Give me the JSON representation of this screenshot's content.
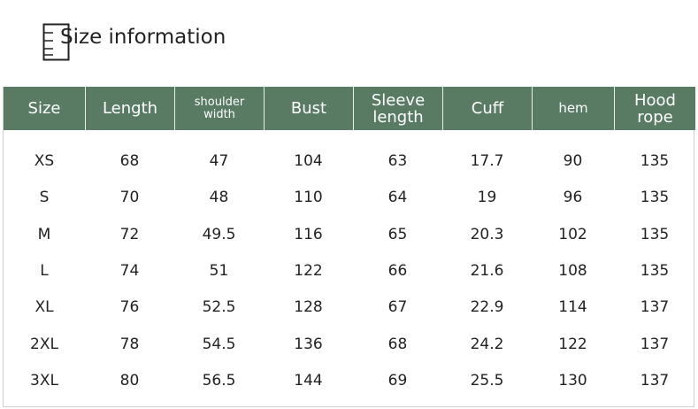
{
  "header": {
    "title": "Size information"
  },
  "table": {
    "headers": [
      [
        "Size"
      ],
      [
        "Length"
      ],
      [
        "shoulder",
        "width"
      ],
      [
        "Bust"
      ],
      [
        "Sleeve",
        "length"
      ],
      [
        "Cuff"
      ],
      [
        "hem"
      ],
      [
        "Hood",
        "rope"
      ]
    ],
    "rows": [
      [
        "XS",
        68,
        47,
        104,
        63,
        17.7,
        90,
        135
      ],
      [
        "S",
        70,
        48,
        110,
        64,
        19,
        96,
        135
      ],
      [
        "M",
        72,
        49.5,
        116,
        65,
        20.3,
        102,
        135
      ],
      [
        "L",
        74,
        51,
        122,
        66,
        21.6,
        108,
        135
      ],
      [
        "XL",
        76,
        52.5,
        128,
        67,
        22.9,
        114,
        137
      ],
      [
        "2XL",
        78,
        54.5,
        136,
        68,
        24.2,
        122,
        137
      ],
      [
        "3XL",
        80,
        56.5,
        144,
        69,
        25.5,
        130,
        137
      ]
    ]
  }
}
